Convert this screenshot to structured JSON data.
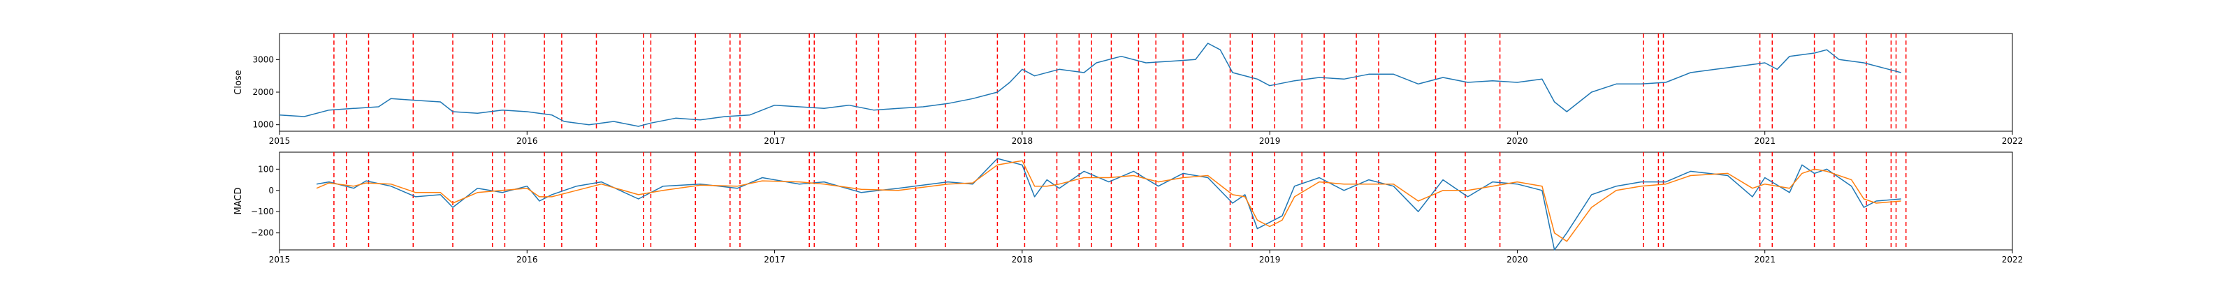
{
  "chart_data": [
    {
      "type": "line",
      "title": "",
      "xlabel": "",
      "ylabel": "Close",
      "xlim": [
        2015.0,
        2022.0
      ],
      "ylim": [
        800,
        3800
      ],
      "x_ticks": [
        2015,
        2016,
        2017,
        2018,
        2019,
        2020,
        2021,
        2022
      ],
      "x_tick_labels": [
        "2015",
        "2016",
        "2017",
        "2018",
        "2019",
        "2020",
        "2021",
        "2022"
      ],
      "y_ticks": [
        1000,
        2000,
        3000
      ],
      "y_tick_labels": [
        "1000",
        "2000",
        "3000"
      ],
      "grid": false,
      "series": [
        {
          "color": "#1f77b4",
          "x": [
            2015.0,
            2015.1,
            2015.2,
            2015.3,
            2015.4,
            2015.45,
            2015.55,
            2015.65,
            2015.7,
            2015.8,
            2015.9,
            2016.0,
            2016.1,
            2016.15,
            2016.25,
            2016.35,
            2016.45,
            2016.5,
            2016.6,
            2016.7,
            2016.8,
            2016.9,
            2017.0,
            2017.1,
            2017.2,
            2017.3,
            2017.4,
            2017.5,
            2017.6,
            2017.7,
            2017.8,
            2017.9,
            2017.95,
            2018.0,
            2018.05,
            2018.15,
            2018.25,
            2018.3,
            2018.4,
            2018.5,
            2018.6,
            2018.7,
            2018.75,
            2018.8,
            2018.85,
            2018.95,
            2019.0,
            2019.1,
            2019.2,
            2019.3,
            2019.4,
            2019.5,
            2019.6,
            2019.7,
            2019.8,
            2019.9,
            2020.0,
            2020.1,
            2020.15,
            2020.2,
            2020.3,
            2020.4,
            2020.5,
            2020.6,
            2020.7,
            2020.8,
            2020.9,
            2021.0,
            2021.05,
            2021.1,
            2021.2,
            2021.25,
            2021.3,
            2021.4,
            2021.5,
            2021.55
          ],
          "y": [
            1300,
            1250,
            1450,
            1500,
            1550,
            1800,
            1750,
            1700,
            1400,
            1350,
            1450,
            1400,
            1300,
            1100,
            1000,
            1100,
            950,
            1050,
            1200,
            1150,
            1250,
            1300,
            1600,
            1550,
            1500,
            1600,
            1450,
            1500,
            1550,
            1650,
            1800,
            2000,
            2300,
            2700,
            2500,
            2700,
            2600,
            2900,
            3100,
            2900,
            2950,
            3000,
            3500,
            3300,
            2600,
            2400,
            2200,
            2350,
            2450,
            2400,
            2550,
            2550,
            2250,
            2450,
            2300,
            2350,
            2300,
            2400,
            1700,
            1400,
            2000,
            2250,
            2250,
            2300,
            2600,
            2700,
            2800,
            2900,
            2700,
            3100,
            3200,
            3300,
            3000,
            2900,
            2700,
            2600
          ]
        }
      ]
    },
    {
      "type": "line",
      "title": "",
      "xlabel": "",
      "ylabel": "MACD",
      "xlim": [
        2015.0,
        2022.0
      ],
      "ylim": [
        -280,
        180
      ],
      "x_ticks": [
        2015,
        2016,
        2017,
        2018,
        2019,
        2020,
        2021,
        2022
      ],
      "x_tick_labels": [
        "2015",
        "2016",
        "2017",
        "2018",
        "2019",
        "2020",
        "2021",
        "2022"
      ],
      "y_ticks": [
        -200,
        -100,
        0,
        100
      ],
      "y_tick_labels": [
        "−200",
        "−100",
        "0",
        "100"
      ],
      "grid": false,
      "series": [
        {
          "color": "#1f77b4",
          "x": [
            2015.15,
            2015.2,
            2015.3,
            2015.35,
            2015.45,
            2015.55,
            2015.65,
            2015.7,
            2015.8,
            2015.9,
            2016.0,
            2016.05,
            2016.1,
            2016.2,
            2016.3,
            2016.45,
            2016.55,
            2016.7,
            2016.85,
            2016.95,
            2017.1,
            2017.2,
            2017.35,
            2017.5,
            2017.7,
            2017.8,
            2017.9,
            2018.0,
            2018.05,
            2018.1,
            2018.15,
            2018.25,
            2018.35,
            2018.45,
            2018.55,
            2018.65,
            2018.75,
            2018.85,
            2018.9,
            2018.95,
            2019.0,
            2019.05,
            2019.1,
            2019.2,
            2019.3,
            2019.4,
            2019.5,
            2019.6,
            2019.7,
            2019.8,
            2019.9,
            2020.0,
            2020.1,
            2020.15,
            2020.2,
            2020.3,
            2020.4,
            2020.5,
            2020.6,
            2020.7,
            2020.85,
            2020.95,
            2021.0,
            2021.1,
            2021.15,
            2021.2,
            2021.25,
            2021.35,
            2021.4,
            2021.45,
            2021.55
          ],
          "y": [
            30,
            40,
            10,
            45,
            20,
            -30,
            -20,
            -80,
            10,
            -10,
            20,
            -50,
            -20,
            20,
            40,
            -40,
            20,
            30,
            10,
            60,
            30,
            40,
            -10,
            10,
            40,
            30,
            150,
            120,
            -30,
            50,
            10,
            90,
            40,
            90,
            20,
            80,
            60,
            -60,
            -20,
            -180,
            -150,
            -120,
            20,
            60,
            0,
            50,
            20,
            -100,
            50,
            -30,
            40,
            30,
            0,
            -280,
            -200,
            -20,
            20,
            40,
            40,
            90,
            70,
            -30,
            60,
            -10,
            120,
            80,
            100,
            20,
            -80,
            -50,
            -40
          ]
        },
        {
          "color": "#ff7f0e",
          "x": [
            2015.15,
            2015.2,
            2015.3,
            2015.35,
            2015.45,
            2015.55,
            2015.65,
            2015.7,
            2015.8,
            2015.9,
            2016.0,
            2016.05,
            2016.1,
            2016.2,
            2016.3,
            2016.45,
            2016.55,
            2016.7,
            2016.85,
            2016.95,
            2017.1,
            2017.2,
            2017.35,
            2017.5,
            2017.7,
            2017.8,
            2017.9,
            2018.0,
            2018.05,
            2018.1,
            2018.15,
            2018.25,
            2018.35,
            2018.45,
            2018.55,
            2018.65,
            2018.75,
            2018.85,
            2018.9,
            2018.95,
            2019.0,
            2019.05,
            2019.1,
            2019.2,
            2019.3,
            2019.4,
            2019.5,
            2019.6,
            2019.7,
            2019.8,
            2019.9,
            2020.0,
            2020.1,
            2020.15,
            2020.2,
            2020.3,
            2020.4,
            2020.5,
            2020.6,
            2020.7,
            2020.85,
            2020.95,
            2021.0,
            2021.1,
            2021.15,
            2021.2,
            2021.25,
            2021.35,
            2021.4,
            2021.45,
            2021.55
          ],
          "y": [
            10,
            35,
            20,
            35,
            30,
            -10,
            -10,
            -60,
            -10,
            0,
            10,
            -30,
            -30,
            0,
            30,
            -20,
            0,
            25,
            20,
            45,
            40,
            30,
            5,
            0,
            30,
            35,
            120,
            140,
            20,
            20,
            30,
            60,
            60,
            70,
            40,
            60,
            70,
            -20,
            -30,
            -140,
            -170,
            -140,
            -30,
            40,
            30,
            30,
            30,
            -50,
            0,
            0,
            20,
            40,
            20,
            -200,
            -240,
            -80,
            0,
            20,
            30,
            70,
            80,
            10,
            30,
            10,
            80,
            100,
            90,
            50,
            -40,
            -60,
            -50
          ]
        }
      ]
    }
  ],
  "event_lines": [
    2015.22,
    2015.27,
    2015.36,
    2015.54,
    2015.7,
    2015.86,
    2015.91,
    2016.07,
    2016.14,
    2016.28,
    2016.47,
    2016.5,
    2016.68,
    2016.82,
    2016.86,
    2017.14,
    2017.16,
    2017.33,
    2017.42,
    2017.57,
    2017.69,
    2017.9,
    2018.01,
    2018.14,
    2018.23,
    2018.28,
    2018.36,
    2018.47,
    2018.54,
    2018.65,
    2018.84,
    2018.93,
    2019.02,
    2019.13,
    2019.22,
    2019.35,
    2019.44,
    2019.67,
    2019.79,
    2019.93,
    2020.51,
    2020.57,
    2020.59,
    2020.98,
    2021.03,
    2021.2,
    2021.28,
    2021.41,
    2021.51,
    2021.53,
    2021.57
  ],
  "event_line_color": "#ff0000"
}
